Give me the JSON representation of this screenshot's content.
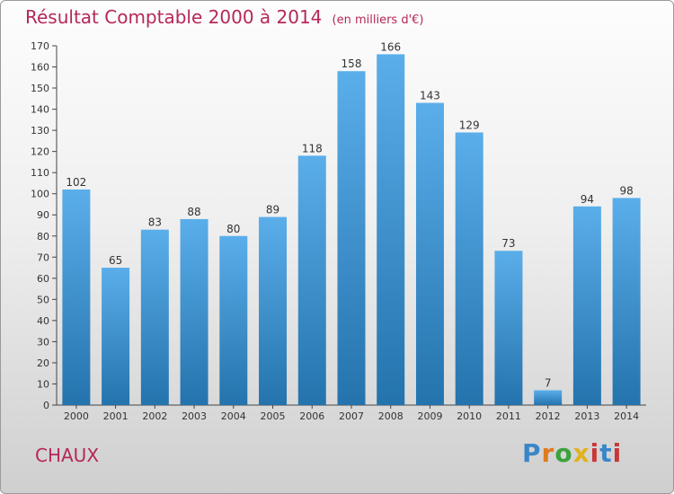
{
  "header": {
    "title": "Résultat Comptable 2000 à 2014",
    "unit": "(en milliers d'€)"
  },
  "footer": {
    "commune": "CHAUX",
    "logo_text": "Proxiti"
  },
  "colors": {
    "title": "#b5275a",
    "bar_top": "#5aaeea",
    "bar_bottom": "#2473ad",
    "logo": [
      "#3a86c8",
      "#e07a1f",
      "#3aa23a",
      "#e0b21f",
      "#c8373a",
      "#3a86c8",
      "#c8373a"
    ]
  },
  "chart_data": {
    "type": "bar",
    "title": "Résultat Comptable 2000 à 2014",
    "xlabel": "",
    "ylabel": "",
    "ylim": [
      0,
      170
    ],
    "yticks": [
      0,
      10,
      20,
      30,
      40,
      50,
      60,
      70,
      80,
      90,
      100,
      110,
      120,
      130,
      140,
      150,
      160,
      170
    ],
    "grid": false,
    "categories": [
      "2000",
      "2001",
      "2002",
      "2003",
      "2004",
      "2005",
      "2006",
      "2007",
      "2008",
      "2009",
      "2010",
      "2011",
      "2012",
      "2013",
      "2014"
    ],
    "values": [
      102,
      65,
      83,
      88,
      80,
      89,
      118,
      158,
      166,
      143,
      129,
      73,
      7,
      94,
      98
    ]
  }
}
